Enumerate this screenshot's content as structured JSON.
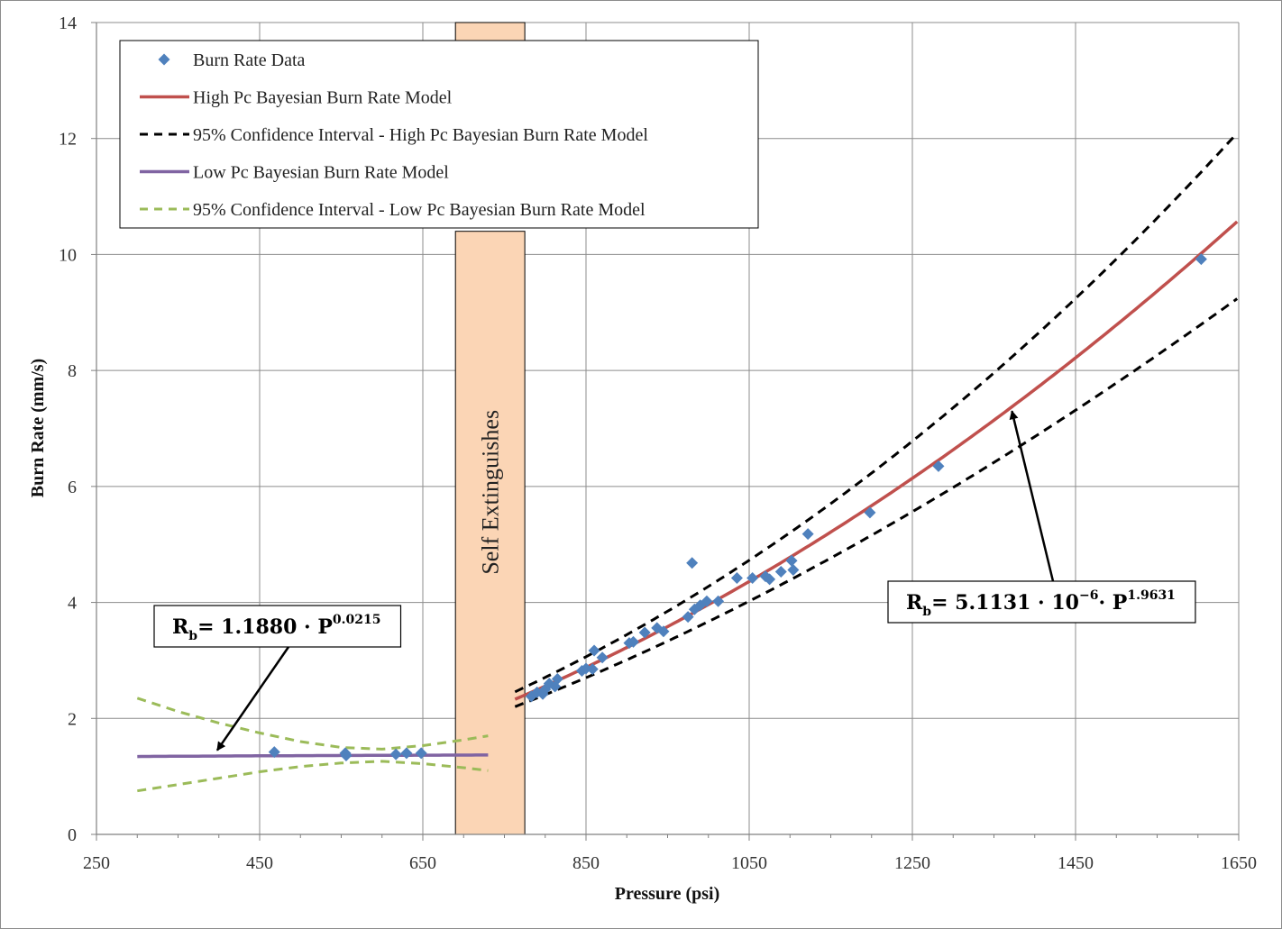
{
  "chart_data": {
    "type": "scatter",
    "xlabel": "Pressure (psi)",
    "ylabel": "Burn Rate (mm/s)",
    "xlim": [
      250,
      1650
    ],
    "ylim": [
      0,
      14
    ],
    "xticks": [
      250,
      450,
      650,
      850,
      1050,
      1250,
      1450,
      1650
    ],
    "yticks": [
      0,
      2,
      4,
      6,
      8,
      10,
      12,
      14
    ],
    "x_minor_step": 50,
    "grid": true,
    "legend_position": "top-left",
    "legend": [
      {
        "label": "Burn Rate Data",
        "kind": "marker",
        "color": "#4f81bd"
      },
      {
        "label": "High Pc Bayesian Burn Rate Model",
        "kind": "solid",
        "color": "#c0504d"
      },
      {
        "label": "95% Confidence Interval - High Pc Bayesian Burn Rate Model",
        "kind": "dashed",
        "color": "#000000"
      },
      {
        "label": "Low Pc Bayesian Burn Rate Model",
        "kind": "solid",
        "color": "#8064a2"
      },
      {
        "label": "95% Confidence Interval - Low Pc Bayesian Burn Rate Model",
        "kind": "dashed",
        "color": "#9bbb59"
      }
    ],
    "band": {
      "label": "Self Extinguishes",
      "x_range": [
        690,
        775
      ],
      "y_range": [
        0,
        10.4
      ],
      "top_y_range": [
        13.6,
        14
      ],
      "color": "#fbd5b5"
    },
    "scatter": {
      "name": "Burn Rate Data",
      "color": "#4f81bd",
      "points": [
        [
          468,
          1.42
        ],
        [
          555,
          1.4
        ],
        [
          556,
          1.36
        ],
        [
          617,
          1.38
        ],
        [
          630,
          1.4
        ],
        [
          648,
          1.4
        ],
        [
          783,
          2.38
        ],
        [
          790,
          2.45
        ],
        [
          797,
          2.42
        ],
        [
          800,
          2.5
        ],
        [
          805,
          2.6
        ],
        [
          812,
          2.55
        ],
        [
          815,
          2.68
        ],
        [
          845,
          2.82
        ],
        [
          850,
          2.86
        ],
        [
          858,
          2.85
        ],
        [
          860,
          3.17
        ],
        [
          870,
          3.05
        ],
        [
          903,
          3.3
        ],
        [
          908,
          3.32
        ],
        [
          922,
          3.48
        ],
        [
          937,
          3.56
        ],
        [
          945,
          3.5
        ],
        [
          975,
          3.75
        ],
        [
          980,
          4.68
        ],
        [
          983,
          3.88
        ],
        [
          990,
          3.95
        ],
        [
          998,
          4.02
        ],
        [
          1012,
          4.02
        ],
        [
          1035,
          4.42
        ],
        [
          1054,
          4.42
        ],
        [
          1070,
          4.45
        ],
        [
          1075,
          4.4
        ],
        [
          1089,
          4.53
        ],
        [
          1102,
          4.72
        ],
        [
          1104,
          4.56
        ],
        [
          1122,
          5.18
        ],
        [
          1198,
          5.55
        ],
        [
          1282,
          6.35
        ],
        [
          1604,
          9.92
        ]
      ]
    },
    "series": [
      {
        "name": "High Pc Bayesian Burn Rate Model",
        "color": "#c0504d",
        "style": "solid",
        "equation": {
          "coef": 5.1131e-06,
          "exp": 1.9631
        },
        "x_range": [
          763,
          1650
        ]
      },
      {
        "name": "95% Confidence Interval - High Pc Bayesian Burn Rate Model (upper)",
        "color": "#000000",
        "style": "dashed",
        "scale": 1.055,
        "rel_growth": 0.085,
        "x_range": [
          763,
          1650
        ]
      },
      {
        "name": "95% Confidence Interval - High Pc Bayesian Burn Rate Model (lower)",
        "color": "#000000",
        "style": "dashed",
        "scale": 0.945,
        "rel_growth": -0.075,
        "x_range": [
          763,
          1650
        ]
      },
      {
        "name": "Low Pc Bayesian Burn Rate Model",
        "color": "#8064a2",
        "style": "solid",
        "equation": {
          "coef": 1.188,
          "exp": 0.0215
        },
        "x_range": [
          300,
          730
        ]
      },
      {
        "name": "95% Confidence Interval - Low Pc Bayesian Burn Rate Model (upper)",
        "color": "#9bbb59",
        "style": "dashed",
        "points": [
          [
            300,
            2.35
          ],
          [
            350,
            2.12
          ],
          [
            400,
            1.92
          ],
          [
            450,
            1.75
          ],
          [
            500,
            1.6
          ],
          [
            550,
            1.5
          ],
          [
            600,
            1.47
          ],
          [
            650,
            1.53
          ],
          [
            700,
            1.63
          ],
          [
            730,
            1.7
          ]
        ]
      },
      {
        "name": "95% Confidence Interval - Low Pc Bayesian Burn Rate Model (lower)",
        "color": "#9bbb59",
        "style": "dashed",
        "points": [
          [
            300,
            0.75
          ],
          [
            350,
            0.86
          ],
          [
            400,
            0.97
          ],
          [
            450,
            1.08
          ],
          [
            500,
            1.17
          ],
          [
            550,
            1.23
          ],
          [
            600,
            1.26
          ],
          [
            650,
            1.22
          ],
          [
            700,
            1.15
          ],
          [
            730,
            1.1
          ]
        ]
      }
    ],
    "annotations": [
      {
        "id": "high",
        "base": "R",
        "sub": "b",
        "mid": " = 5.1131 · 10",
        "sup1": "−6",
        "tail": " · P",
        "sup2": "1.9631",
        "arrow_to": [
          1372,
          7.3
        ]
      },
      {
        "id": "low",
        "base": "R",
        "sub": "b",
        "mid": " = 1.1880 · P",
        "sup2": "0.0215",
        "arrow_to": [
          398,
          1.45
        ]
      }
    ]
  }
}
